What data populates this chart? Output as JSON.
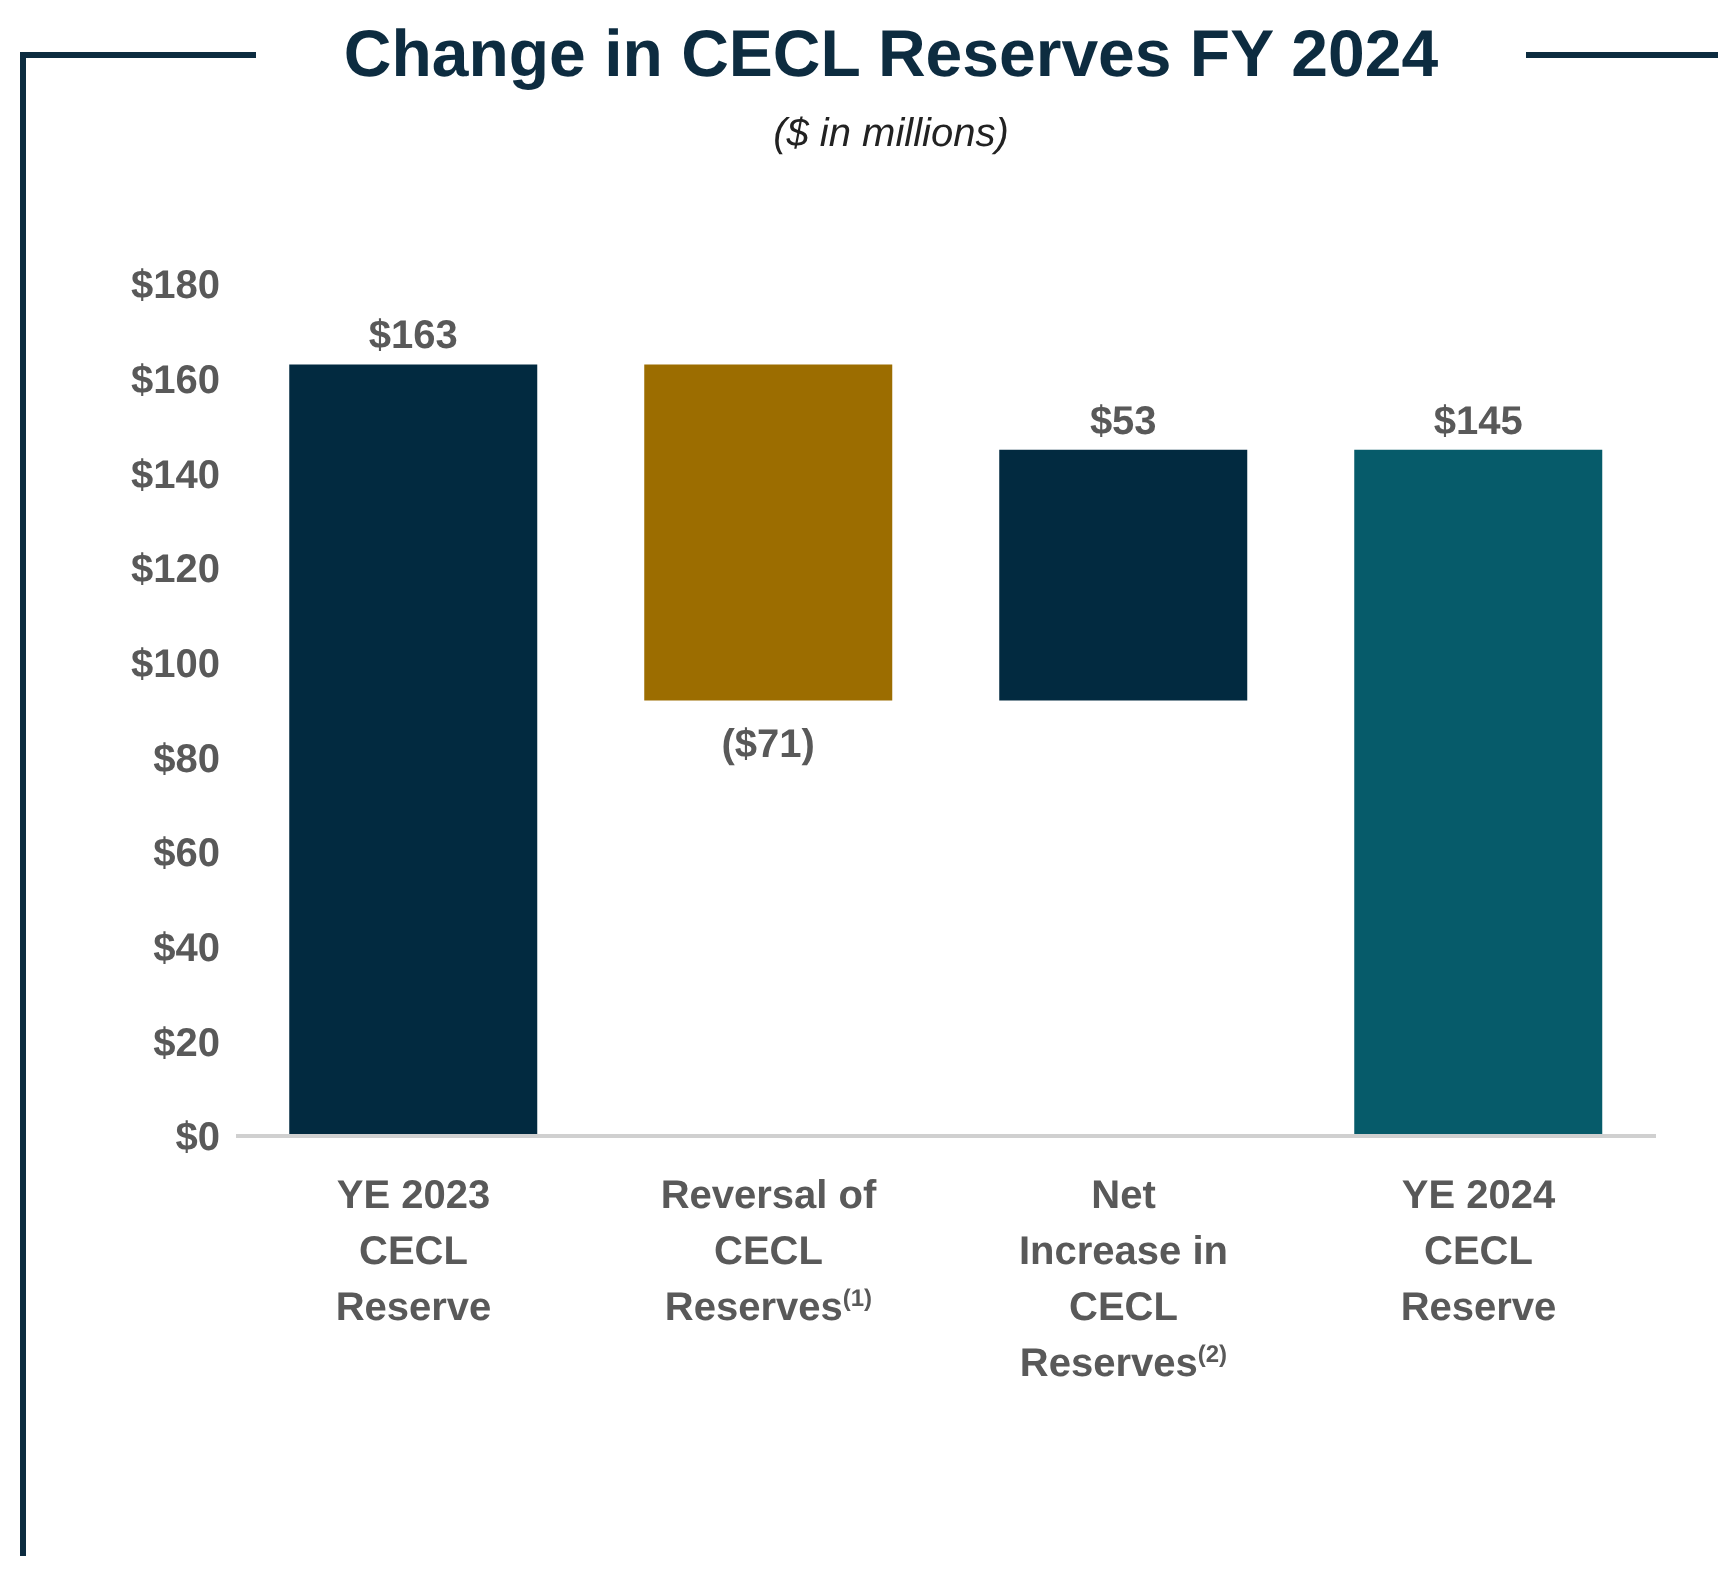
{
  "chart_data": {
    "type": "bar",
    "title": "Change in CECL Reserves FY 2024",
    "subtitle": "($ in millions)",
    "categories": [
      "YE 2023 CECL Reserve",
      "Reversal of CECL Reserves$^{(1)}$",
      "Net Increase in CECL Reserves$^{(2)}$",
      "YE 2024 CECL Reserve"
    ],
    "values": [
      163,
      -71,
      53,
      145
    ],
    "base": [
      0,
      163,
      92,
      0
    ],
    "colors": [
      "#022a40",
      "#9c6d00",
      "#022a40",
      "#065b6a"
    ],
    "value_labels": [
      "$163",
      "($71)",
      "$53",
      "$145"
    ],
    "ylim": [
      0,
      180
    ],
    "yticks": [
      {
        "value": 0,
        "label": "$0"
      },
      {
        "value": 20,
        "label": "$20"
      },
      {
        "value": 40,
        "label": "$40"
      },
      {
        "value": 60,
        "label": "$60"
      },
      {
        "value": 80,
        "label": "$80"
      },
      {
        "value": 100,
        "label": "$100"
      },
      {
        "value": 120,
        "label": "$120"
      },
      {
        "value": 140,
        "label": "$140"
      },
      {
        "value": 160,
        "label": "$160"
      },
      {
        "value": 180,
        "label": "$180"
      }
    ],
    "grid": false,
    "legend": false
  }
}
